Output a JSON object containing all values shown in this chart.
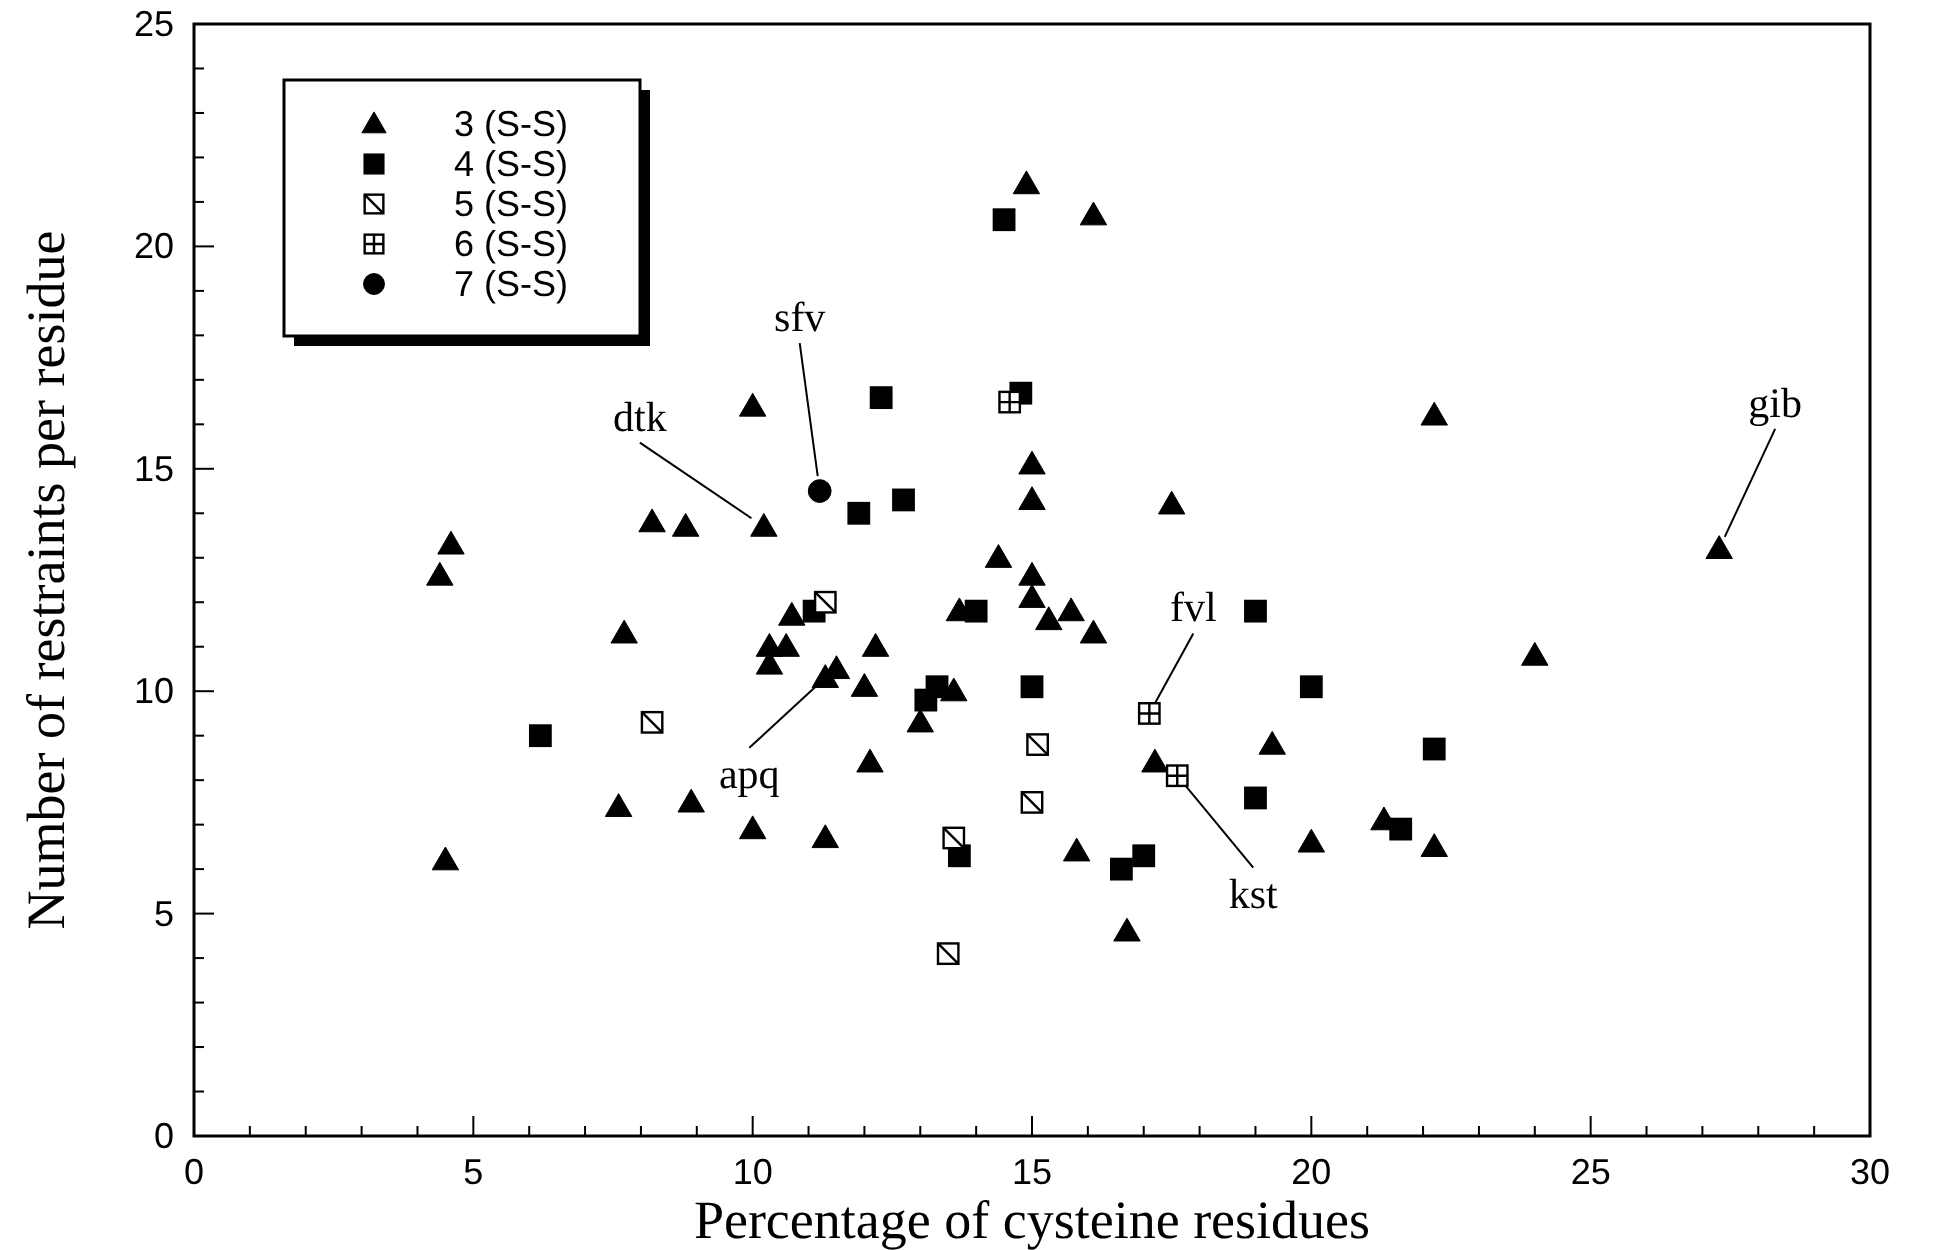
{
  "chart_data": {
    "type": "scatter",
    "xlabel": "Percentage of cysteine residues",
    "ylabel": "Number of restraints per residue",
    "xlim": [
      0,
      30
    ],
    "ylim": [
      0,
      25
    ],
    "xticks": [
      0,
      {
        "value": 1,
        "label": null
      },
      {
        "value": 2,
        "label": null
      },
      {
        "value": 3,
        "label": null
      },
      {
        "value": 4,
        "label": null
      },
      5,
      {
        "value": 6,
        "label": null
      },
      {
        "value": 7,
        "label": null
      },
      {
        "value": 8,
        "label": null
      },
      {
        "value": 9,
        "label": null
      },
      10,
      {
        "value": 11,
        "label": null
      },
      {
        "value": 12,
        "label": null
      },
      {
        "value": 13,
        "label": null
      },
      {
        "value": 14,
        "label": null
      },
      15,
      {
        "value": 16,
        "label": null
      },
      {
        "value": 17,
        "label": null
      },
      {
        "value": 18,
        "label": null
      },
      {
        "value": 19,
        "label": null
      },
      20,
      {
        "value": 21,
        "label": null
      },
      {
        "value": 22,
        "label": null
      },
      {
        "value": 23,
        "label": null
      },
      {
        "value": 24,
        "label": null
      },
      25,
      {
        "value": 26,
        "label": null
      },
      {
        "value": 27,
        "label": null
      },
      {
        "value": 28,
        "label": null
      },
      {
        "value": 29,
        "label": null
      },
      30
    ],
    "yticks": [
      0,
      {
        "value": 1,
        "label": null
      },
      {
        "value": 2,
        "label": null
      },
      {
        "value": 3,
        "label": null
      },
      {
        "value": 4,
        "label": null
      },
      5,
      {
        "value": 6,
        "label": null
      },
      {
        "value": 7,
        "label": null
      },
      {
        "value": 8,
        "label": null
      },
      {
        "value": 9,
        "label": null
      },
      10,
      {
        "value": 11,
        "label": null
      },
      {
        "value": 12,
        "label": null
      },
      {
        "value": 13,
        "label": null
      },
      {
        "value": 14,
        "label": null
      },
      15,
      {
        "value": 16,
        "label": null
      },
      {
        "value": 17,
        "label": null
      },
      {
        "value": 18,
        "label": null
      },
      {
        "value": 19,
        "label": null
      },
      20,
      {
        "value": 21,
        "label": null
      },
      {
        "value": 22,
        "label": null
      },
      {
        "value": 23,
        "label": null
      },
      {
        "value": 24,
        "label": null
      },
      25
    ],
    "grid": false,
    "legend": "top left",
    "series": [
      {
        "name": "3 (S-S)",
        "color": "#000000",
        "marker": "triangle",
        "x": [
          4.4,
          4.6,
          4.5,
          7.7,
          7.6,
          8.2,
          8.8,
          8.9,
          10.0,
          10.0,
          10.2,
          10.3,
          10.3,
          10.7,
          10.6,
          11.3,
          11.5,
          11.3,
          12.0,
          12.2,
          12.1,
          13.0,
          13.6,
          13.7,
          14.4,
          14.9,
          16.1,
          15.0,
          15.0,
          15.0,
          15.0,
          15.3,
          15.7,
          16.1,
          15.8,
          17.5,
          17.2,
          16.7,
          19.3,
          20.0,
          21.3,
          22.2,
          22.2,
          24.0,
          27.3
        ],
        "values": [
          12.6,
          13.3,
          6.2,
          11.3,
          7.4,
          13.8,
          13.7,
          7.5,
          16.4,
          6.9,
          13.7,
          11.0,
          10.6,
          11.7,
          11.0,
          10.3,
          10.5,
          6.7,
          10.1,
          11.0,
          8.4,
          9.3,
          10.0,
          11.8,
          13.0,
          21.4,
          20.7,
          15.1,
          14.3,
          12.6,
          12.1,
          11.6,
          11.8,
          11.3,
          6.4,
          14.2,
          8.4,
          4.6,
          8.8,
          6.6,
          7.1,
          6.5,
          16.2,
          10.8,
          13.2
        ]
      },
      {
        "name": "4 (S-S)",
        "color": "#000000",
        "marker": "square",
        "x": [
          6.2,
          11.9,
          12.3,
          12.7,
          14.5,
          14.8,
          14.0,
          13.1,
          13.3,
          15.0,
          13.7,
          17.0,
          16.6,
          19.0,
          20.0,
          19.0,
          21.6,
          22.2,
          11.1
        ],
        "values": [
          9.0,
          14.0,
          16.6,
          14.3,
          20.6,
          16.7,
          11.8,
          9.8,
          10.1,
          10.1,
          6.3,
          6.3,
          6.0,
          11.8,
          10.1,
          7.6,
          6.9,
          8.7,
          11.8
        ]
      },
      {
        "name": "5 (S-S)",
        "color": "#ffffff",
        "marker": "square",
        "x": [
          8.2,
          11.3,
          15.1,
          15.0,
          13.6,
          13.5
        ],
        "values": [
          9.3,
          12.0,
          8.8,
          7.5,
          6.7,
          4.1
        ]
      },
      {
        "name": "6 (S-S)",
        "color": "#ffffff",
        "marker": "square",
        "x": [
          14.6,
          17.1,
          17.6
        ],
        "values": [
          16.5,
          9.5,
          8.1
        ]
      },
      {
        "name": "7 (S-S)",
        "color": "#000000",
        "marker": "circle",
        "x": [
          11.2
        ],
        "values": [
          14.5
        ]
      }
    ],
    "annotations": [
      {
        "text": "sfv",
        "x": 11.2,
        "y": 14.5
      },
      {
        "text": "dtk",
        "x": 10.2,
        "y": 13.7
      },
      {
        "text": "apq",
        "x": 11.3,
        "y": 10.3
      },
      {
        "text": "fvl",
        "x": 17.1,
        "y": 9.5
      },
      {
        "text": "kst",
        "x": 17.6,
        "y": 8.1
      },
      {
        "text": "gib",
        "x": 27.3,
        "y": 13.2
      }
    ]
  }
}
